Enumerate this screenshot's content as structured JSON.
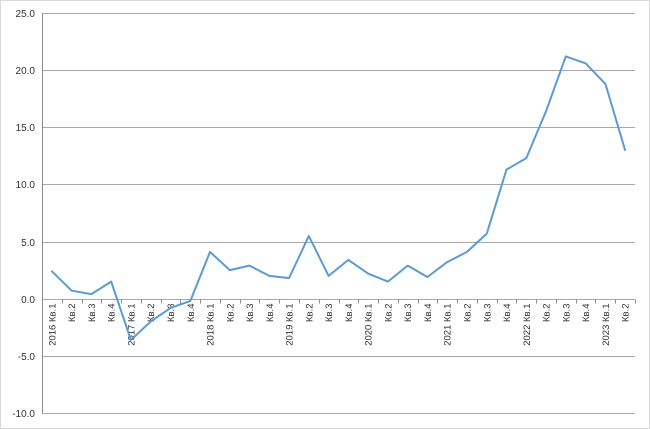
{
  "chart_data": {
    "type": "line",
    "title": "",
    "xlabel": "",
    "ylabel": "",
    "ylim": [
      -10,
      25
    ],
    "y_ticks": [
      "25.0",
      "20.0",
      "15.0",
      "10.0",
      "5.0",
      "0.0",
      "-5.0",
      "-10.0"
    ],
    "y_tick_values": [
      25,
      20,
      15,
      10,
      5,
      0,
      -5,
      -10
    ],
    "grid": true,
    "legend": "none",
    "categories": [
      "2016 Кв.1",
      "Кв.2",
      "Кв.3",
      "Кв.4",
      "2017 Кв.1",
      "Кв.2",
      "Кв.3",
      "Кв.4",
      "2018 Кв.1",
      "Кв.2",
      "Кв.3",
      "Кв.4",
      "2019 Кв.1",
      "Кв.2",
      "Кв.3",
      "Кв.4",
      "2020 Кв.1",
      "Кв.2",
      "Кв.3",
      "Кв.4",
      "2021 Кв.1",
      "Кв.2",
      "Кв.3",
      "Кв.4",
      "2022 Кв.1",
      "Кв.2",
      "Кв.3",
      "Кв.4",
      "2023 Кв.1",
      "Кв.2"
    ],
    "series": [
      {
        "color": "#5b9bd5",
        "values": [
          2.4,
          0.7,
          0.4,
          1.5,
          -3.6,
          -2.0,
          -0.8,
          -0.2,
          4.1,
          2.5,
          2.9,
          2.0,
          1.8,
          5.5,
          2.0,
          3.4,
          2.2,
          1.5,
          2.9,
          1.9,
          3.2,
          4.1,
          5.7,
          11.3,
          12.3,
          16.4,
          21.2,
          20.6,
          18.8,
          13.0
        ]
      }
    ]
  }
}
